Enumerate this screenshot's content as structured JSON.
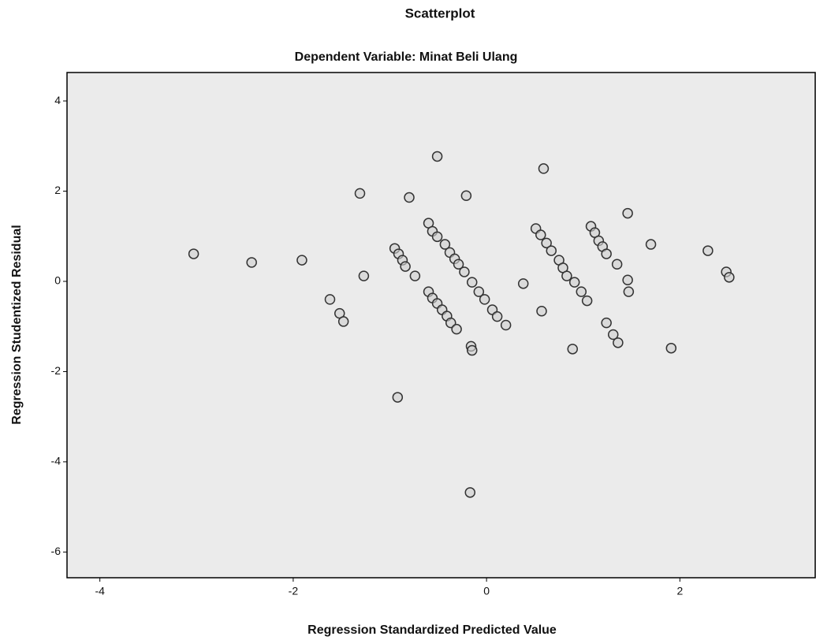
{
  "chart_data": {
    "type": "scatter",
    "title": "Scatterplot",
    "subtitle": "Dependent Variable: Minat Beli Ulang",
    "xlabel": "Regression Standardized Predicted Value",
    "ylabel": "Regression Studentized Residual",
    "xlim": [
      -4.34,
      3.4
    ],
    "ylim": [
      -6.57,
      4.63
    ],
    "xticks": [
      -4,
      -2,
      0,
      2
    ],
    "yticks": [
      4,
      2,
      0,
      -2,
      -4,
      -6
    ],
    "marker_color": "#333333",
    "plot_background": "#ebebeb",
    "x": [
      -0.95,
      -0.91,
      -0.87,
      -0.84,
      -0.74,
      -0.6,
      -0.56,
      -0.51,
      -0.43,
      -0.38,
      -0.33,
      -0.29,
      -0.23,
      -0.15,
      -0.08,
      -0.02,
      0.06,
      0.11,
      0.2,
      -0.6,
      -0.56,
      -0.51,
      -0.46,
      -0.41,
      -0.37,
      -0.31,
      -0.16,
      -0.15,
      0.51,
      0.56,
      0.62,
      0.67,
      0.38,
      0.57,
      0.75,
      0.79,
      0.83,
      0.91,
      0.98,
      1.04,
      0.89,
      1.08,
      1.12,
      1.16,
      1.2,
      1.24,
      1.35,
      1.46,
      1.47,
      1.24,
      1.31,
      1.36,
      1.46,
      1.7,
      1.91,
      2.29,
      2.48,
      2.51,
      -3.03,
      -2.43,
      -1.91,
      -1.31,
      -1.27,
      -1.62,
      -1.52,
      -1.48,
      -0.8,
      -0.51,
      -0.21,
      0.59,
      -0.92,
      -0.17
    ],
    "values": [
      0.73,
      0.61,
      0.47,
      0.33,
      0.12,
      1.29,
      1.11,
      0.99,
      0.82,
      0.64,
      0.5,
      0.38,
      0.21,
      -0.02,
      -0.23,
      -0.4,
      -0.63,
      -0.78,
      -0.97,
      -0.23,
      -0.37,
      -0.49,
      -0.63,
      -0.77,
      -0.92,
      -1.06,
      -1.44,
      -1.53,
      1.17,
      1.03,
      0.85,
      0.68,
      -0.05,
      -0.66,
      0.47,
      0.3,
      0.12,
      -0.02,
      -0.23,
      -0.43,
      -1.5,
      1.22,
      1.08,
      0.9,
      0.77,
      0.61,
      0.38,
      0.03,
      -0.23,
      -0.92,
      -1.18,
      -1.36,
      1.51,
      0.82,
      -1.48,
      0.68,
      0.21,
      0.09,
      0.61,
      0.42,
      0.47,
      1.95,
      0.12,
      -0.4,
      -0.71,
      -0.89,
      1.86,
      2.77,
      1.9,
      2.5,
      -2.57,
      -4.68
    ]
  }
}
